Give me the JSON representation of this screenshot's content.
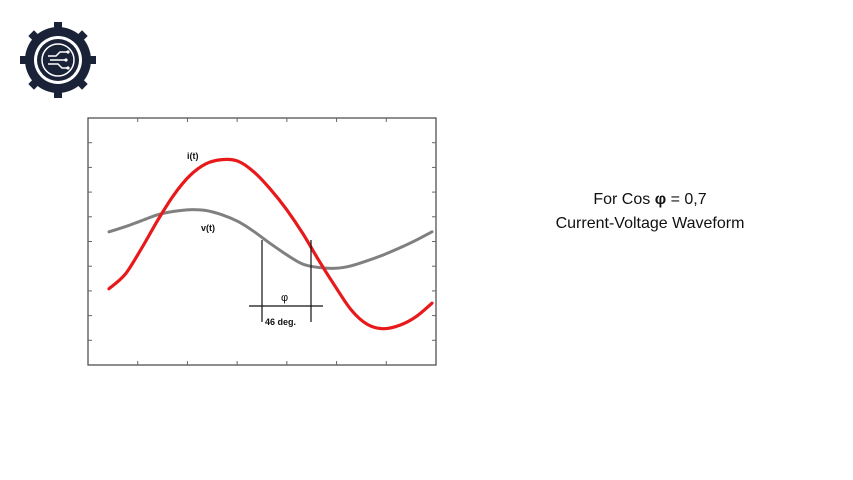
{
  "caption": {
    "line1_prefix": "For Cos ",
    "line1_symbol": "φ",
    "line1_suffix": " = 0,7",
    "line2": "Current-Voltage Waveform"
  },
  "chart_data": {
    "type": "line",
    "xlim": [
      0,
      1
    ],
    "ylim": [
      -1,
      1
    ],
    "grid": false,
    "series": [
      {
        "name": "i(t)",
        "color": "#e8191a",
        "x": [
          0.0,
          0.05,
          0.1,
          0.15,
          0.2,
          0.25,
          0.3,
          0.35,
          0.4,
          0.45,
          0.5,
          0.55,
          0.6,
          0.65,
          0.7,
          0.75,
          0.8,
          0.85,
          0.9,
          0.95,
          1.0
        ],
        "values": [
          -0.55,
          -0.38,
          -0.08,
          0.25,
          0.55,
          0.78,
          0.92,
          0.97,
          0.95,
          0.82,
          0.62,
          0.38,
          0.1,
          -0.22,
          -0.52,
          -0.8,
          -0.97,
          -1.02,
          -0.98,
          -0.88,
          -0.72
        ]
      },
      {
        "name": "v(t)",
        "color": "#808080",
        "x": [
          0.0,
          0.05,
          0.1,
          0.15,
          0.2,
          0.25,
          0.3,
          0.35,
          0.4,
          0.45,
          0.5,
          0.55,
          0.6,
          0.65,
          0.7,
          0.75,
          0.8,
          0.85,
          0.9,
          0.95,
          1.0
        ],
        "values": [
          0.12,
          0.18,
          0.25,
          0.32,
          0.36,
          0.38,
          0.37,
          0.32,
          0.24,
          0.12,
          -0.02,
          -0.15,
          -0.26,
          -0.3,
          -0.31,
          -0.28,
          -0.22,
          -0.15,
          -0.07,
          0.02,
          0.12
        ]
      }
    ],
    "annotations": {
      "phi_label": "φ",
      "phase_label": "46 deg."
    }
  }
}
